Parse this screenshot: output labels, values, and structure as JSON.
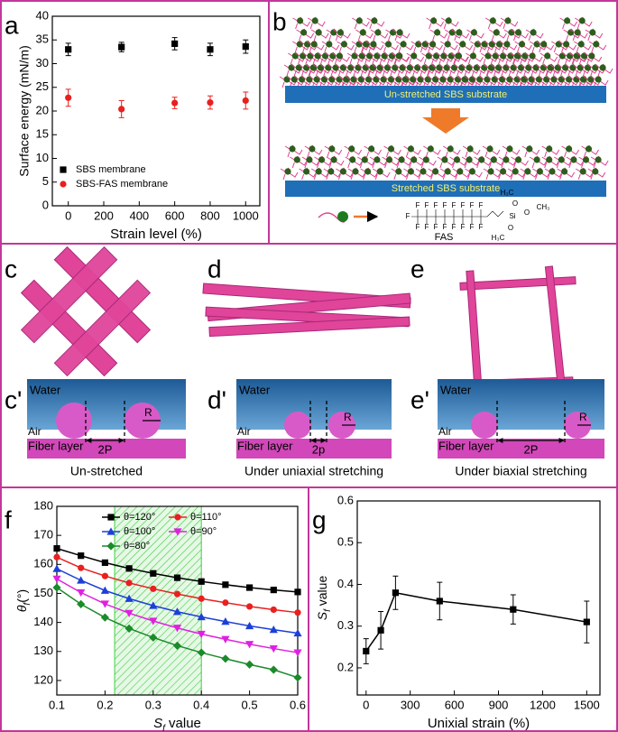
{
  "chart_data": [
    {
      "type": "scatter",
      "panel_label": "a",
      "y_label": "Surface energy (mN/m)",
      "x_label": "Strain level (%)",
      "x": [
        0,
        300,
        600,
        800,
        1000
      ],
      "series": [
        {
          "name": "SBS membrane",
          "color": "#000000",
          "marker": "square",
          "values": [
            33,
            33.5,
            34.2,
            33,
            33.6
          ],
          "errors": [
            1.3,
            1,
            1.3,
            1.3,
            1.4
          ]
        },
        {
          "name": "SBS-FAS membrane",
          "color": "#e8201f",
          "marker": "circle",
          "values": [
            22.8,
            20.4,
            21.7,
            21.8,
            22.2
          ],
          "errors": [
            1.8,
            1.8,
            1.2,
            1.4,
            1.8
          ]
        }
      ],
      "xlim": [
        -90,
        1080
      ],
      "xticks": [
        0,
        200,
        400,
        600,
        800,
        1000
      ],
      "ylim": [
        0,
        40
      ],
      "yticks": [
        0,
        5,
        10,
        15,
        20,
        25,
        30,
        35,
        40
      ],
      "legend": "lower left"
    },
    {
      "type": "line",
      "panel_label": "f",
      "y_label": {
        "main": "θ",
        "sub": "f",
        "tail": "(°)"
      },
      "x_label": {
        "main": "S",
        "sub": "f",
        "tail": " value"
      },
      "x": [
        0.1,
        0.15,
        0.2,
        0.25,
        0.3,
        0.35,
        0.4,
        0.45,
        0.5,
        0.55,
        0.6
      ],
      "series": [
        {
          "name": "θ=120°",
          "color": "#000000",
          "marker": "square",
          "values": [
            165.5,
            163,
            160.6,
            158.6,
            156.9,
            155.4,
            154.1,
            153,
            152,
            151.2,
            150.5
          ]
        },
        {
          "name": "θ=110°",
          "color": "#e8201f",
          "marker": "circle",
          "values": [
            162.5,
            158.8,
            156,
            153.6,
            151.6,
            149.8,
            148.2,
            146.8,
            145.5,
            144.4,
            143.4
          ]
        },
        {
          "name": "θ=100°",
          "color": "#1c3fd8",
          "marker": "triangle-up",
          "values": [
            158.5,
            154.5,
            151,
            148.2,
            145.8,
            143.7,
            141.9,
            140.3,
            138.8,
            137.5,
            136.3
          ]
        },
        {
          "name": "θ=90°",
          "color": "#e020e0",
          "marker": "triangle-down",
          "values": [
            155,
            150.3,
            146.4,
            143.2,
            140.5,
            138.1,
            136,
            134.2,
            132.5,
            131,
            129.6
          ]
        },
        {
          "name": "θ=80°",
          "color": "#1b8a2a",
          "marker": "diamond",
          "values": [
            152,
            146.3,
            141.7,
            137.9,
            134.8,
            132,
            129.6,
            127.5,
            125.5,
            123.7,
            121
          ]
        }
      ],
      "shaded_region": [
        0.22,
        0.4
      ],
      "xlim": [
        0.1,
        0.6
      ],
      "xticks": [
        0.1,
        0.2,
        0.3,
        0.4,
        0.5,
        0.6
      ],
      "ylim": [
        115,
        180
      ],
      "yticks": [
        120,
        130,
        140,
        150,
        160,
        170,
        180
      ],
      "legend": "upper"
    },
    {
      "type": "line",
      "panel_label": "g",
      "y_label": {
        "main": "S",
        "sub": "f",
        "tail": " value"
      },
      "x_label": "Unixial strain (%)",
      "x": [
        0,
        100,
        200,
        500,
        1000,
        1500
      ],
      "series": [
        {
          "color": "#000000",
          "marker": "square",
          "values": [
            0.24,
            0.29,
            0.38,
            0.36,
            0.34,
            0.31
          ],
          "errors": [
            0.03,
            0.045,
            0.04,
            0.045,
            0.035,
            0.05
          ]
        }
      ],
      "xlim": [
        -60,
        1590
      ],
      "xticks": [
        0,
        300,
        600,
        900,
        1200,
        1500
      ],
      "ylim": [
        0.135,
        0.6
      ],
      "yticks": [
        0.2,
        0.3,
        0.4,
        0.5,
        0.6
      ]
    }
  ],
  "scheme_b": {
    "panel_label": "b",
    "substrate_top": "Un-stretched SBS substrate",
    "substrate_bottom": "Stretched SBS substrate",
    "molecule": "FAS",
    "formula": {
      "fluorine": "F",
      "carbon": "C",
      "silicon": "Si",
      "methyl_left": "H₃C",
      "methyl_right": "CH₃",
      "oxygen": "O"
    }
  },
  "schemes": [
    {
      "panel_label": "c",
      "sub_label": "c'",
      "water": "Water",
      "air": "Air",
      "fiber": "Fiber layer",
      "radius": "R",
      "spacing": "2P",
      "caption": "Un-stretched"
    },
    {
      "panel_label": "d",
      "sub_label": "d'",
      "water": "Water",
      "air": "Air",
      "fiber": "Fiber layer",
      "radius": "R",
      "spacing": "2p",
      "caption": "Under uniaxial stretching"
    },
    {
      "panel_label": "e",
      "sub_label": "e'",
      "water": "Water",
      "air": "Air",
      "fiber": "Fiber layer",
      "radius": "R",
      "spacing": "2P",
      "caption": "Under biaxial stretching"
    }
  ]
}
